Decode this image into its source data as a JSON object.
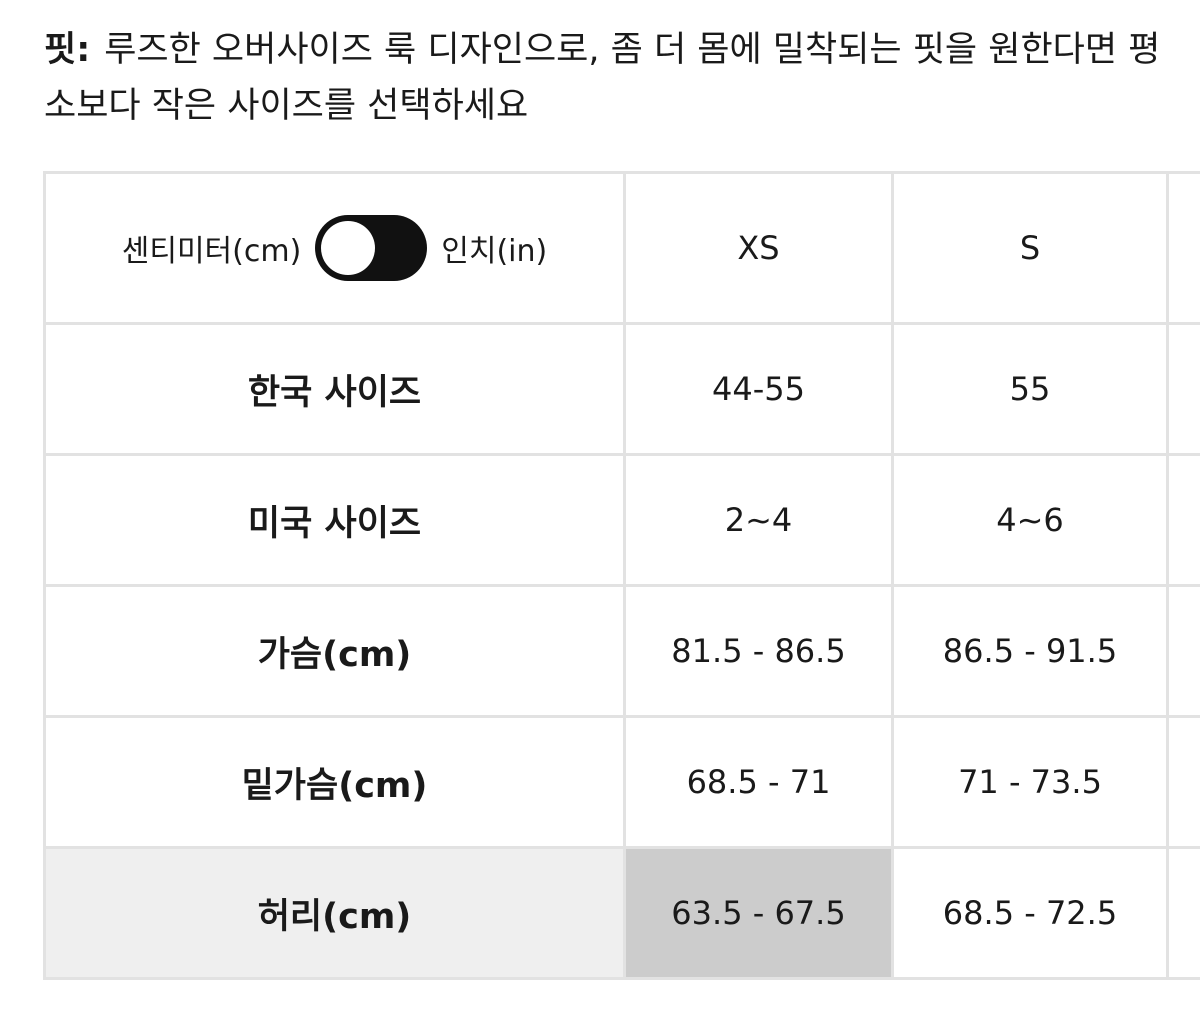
{
  "fit": {
    "label": "핏:",
    "text": "루즈한 오버사이즈 룩 디자인으로, 좀 더 몸에 밀착되는 핏을 원한다면 평소보다 작은 사이즈를 선택하세요"
  },
  "table": {
    "unit_toggle": {
      "left": "센티미터(cm)",
      "right": "인치(in)"
    },
    "columns": [
      "XS",
      "S"
    ],
    "rows": [
      {
        "label": "한국 사이즈",
        "cells": [
          "44-55",
          "55"
        ]
      },
      {
        "label": "미국 사이즈",
        "cells": [
          "2~4",
          "4~6"
        ]
      },
      {
        "label": "가슴(cm)",
        "cells": [
          "81.5 - 86.5",
          "86.5 - 91.5"
        ]
      },
      {
        "label": "밑가슴(cm)",
        "cells": [
          "68.5 - 71",
          "71 - 73.5"
        ]
      },
      {
        "label": "허리(cm)",
        "cells": [
          "63.5 - 67.5",
          "68.5 - 72.5"
        ]
      }
    ]
  }
}
